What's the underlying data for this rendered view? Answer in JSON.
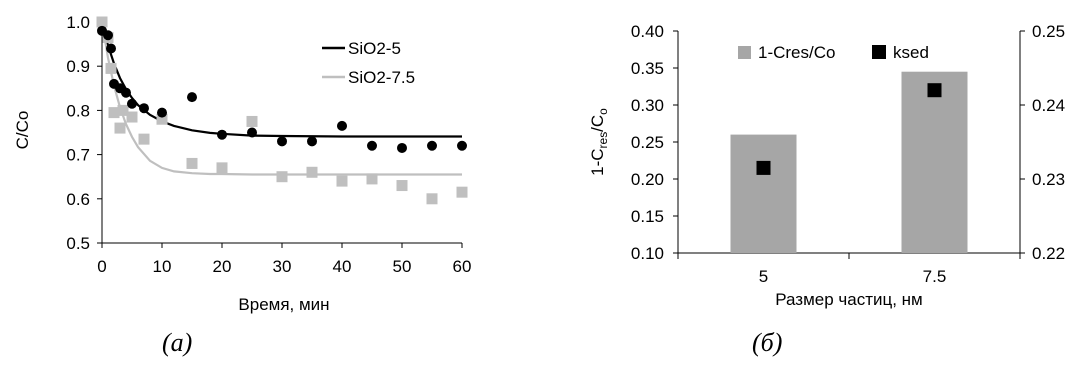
{
  "chart_data": [
    {
      "type": "scatter",
      "caption": "(a)",
      "xlabel": "Время, мин",
      "ylabel": "C/Co",
      "xlim": [
        0,
        60
      ],
      "ylim": [
        0.5,
        1.0
      ],
      "xticks": [
        "0",
        "10",
        "20",
        "30",
        "40",
        "50",
        "60"
      ],
      "yticks": [
        "0.5",
        "0.6",
        "0.7",
        "0.8",
        "0.9",
        "1.0"
      ],
      "legend_position": "top-right",
      "grid": false,
      "series": [
        {
          "name": "SiO2-5",
          "marker": "circle",
          "color": "#000000",
          "x": [
            0,
            1,
            1.5,
            2,
            3,
            4,
            5,
            7,
            10,
            15,
            20,
            25,
            30,
            35,
            40,
            45,
            50,
            55,
            60
          ],
          "y": [
            0.98,
            0.97,
            0.94,
            0.86,
            0.85,
            0.84,
            0.815,
            0.805,
            0.795,
            0.83,
            0.745,
            0.75,
            0.73,
            0.73,
            0.765,
            0.72,
            0.715,
            0.72,
            0.72
          ],
          "fit": {
            "x": [
              0,
              1,
              2,
              3,
              4,
              5,
              6,
              8,
              10,
              12,
              15,
              18,
              20,
              25,
              30,
              40,
              50,
              60
            ],
            "y": [
              1.0,
              0.947,
              0.906,
              0.873,
              0.848,
              0.828,
              0.812,
              0.79,
              0.775,
              0.765,
              0.755,
              0.749,
              0.747,
              0.743,
              0.742,
              0.741,
              0.741,
              0.741
            ]
          }
        },
        {
          "name": "SiO2-7.5",
          "marker": "square",
          "color": "#bfbfbf",
          "x": [
            0,
            1,
            1.5,
            2,
            3,
            3.5,
            5,
            7,
            10,
            15,
            20,
            25,
            30,
            35,
            40,
            45,
            50,
            55,
            60
          ],
          "y": [
            1.0,
            0.965,
            0.895,
            0.795,
            0.76,
            0.8,
            0.785,
            0.735,
            0.78,
            0.68,
            0.67,
            0.775,
            0.65,
            0.66,
            0.64,
            0.645,
            0.63,
            0.6,
            0.615
          ],
          "fit": {
            "x": [
              0,
              1,
              2,
              3,
              4,
              5,
              6,
              8,
              10,
              12,
              15,
              18,
              20,
              25,
              30,
              40,
              50,
              60
            ],
            "y": [
              1.0,
              0.919,
              0.856,
              0.807,
              0.769,
              0.74,
              0.717,
              0.686,
              0.67,
              0.662,
              0.658,
              0.656,
              0.656,
              0.655,
              0.655,
              0.655,
              0.655,
              0.655
            ]
          }
        }
      ]
    },
    {
      "type": "bar",
      "caption": "(б)",
      "xlabel": "Размер частиц, нм",
      "ylabel_main": "1-C",
      "ylabel_sub1": "res",
      "ylabel_mid": "/C",
      "ylabel_sub2": "o",
      "categories": [
        "5",
        "7.5"
      ],
      "ylim": [
        0.1,
        0.4
      ],
      "yticks": [
        "0.10",
        "0.15",
        "0.20",
        "0.25",
        "0.30",
        "0.35",
        "0.40"
      ],
      "y2lim": [
        0.22,
        0.25
      ],
      "y2ticks": [
        "0.22",
        "0.23",
        "0.24",
        "0.25"
      ],
      "legend_position": "top",
      "grid": false,
      "series": [
        {
          "name": "1-Cres/Co",
          "kind": "bar",
          "axis": "left",
          "color": "#a6a6a6",
          "values": [
            0.26,
            0.345
          ]
        },
        {
          "name": "ksed",
          "kind": "marker",
          "axis": "right",
          "color": "#000000",
          "values": [
            0.2315,
            0.242
          ]
        }
      ]
    }
  ]
}
